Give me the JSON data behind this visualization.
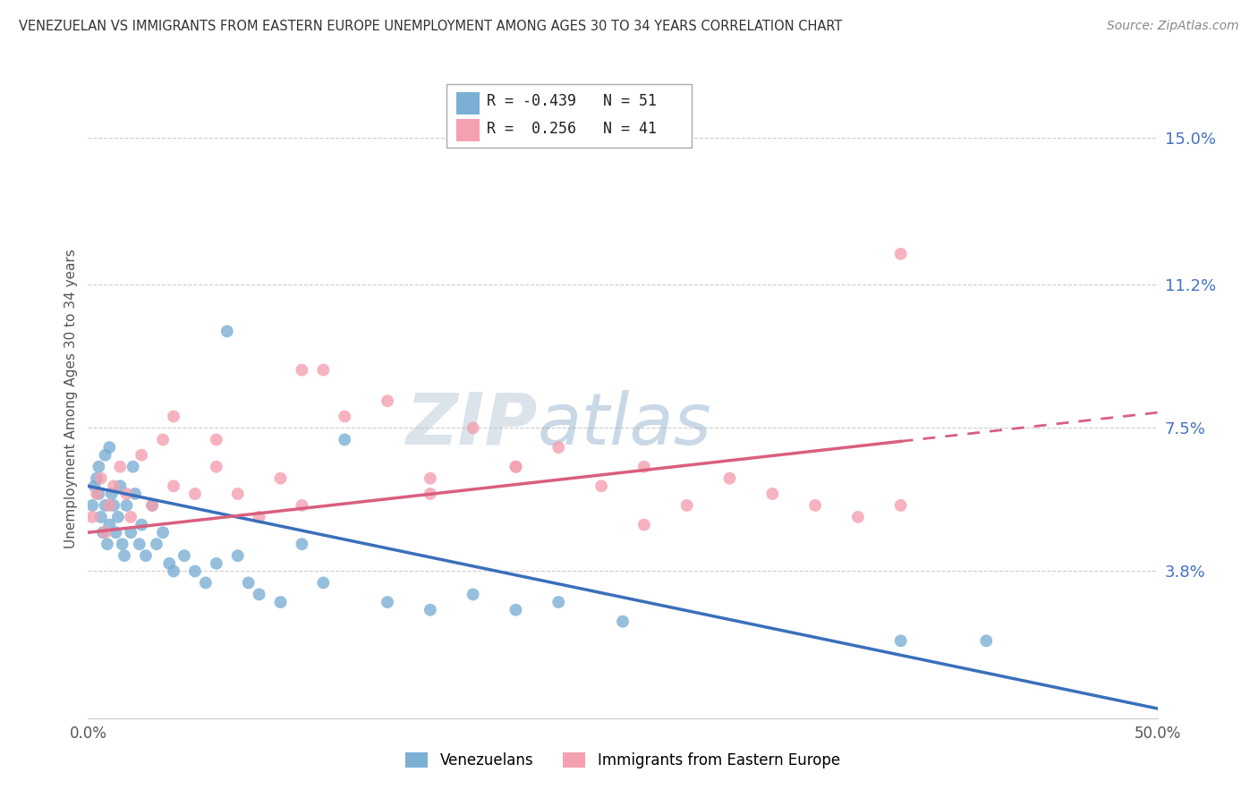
{
  "title": "VENEZUELAN VS IMMIGRANTS FROM EASTERN EUROPE UNEMPLOYMENT AMONG AGES 30 TO 34 YEARS CORRELATION CHART",
  "source": "Source: ZipAtlas.com",
  "ylabel": "Unemployment Among Ages 30 to 34 years",
  "xmin": 0.0,
  "xmax": 0.5,
  "ymin": 0.0,
  "ymax": 0.165,
  "yticks": [
    0.0,
    0.038,
    0.075,
    0.112,
    0.15
  ],
  "ytick_labels": [
    "",
    "3.8%",
    "7.5%",
    "11.2%",
    "15.0%"
  ],
  "xticks": [
    0.0,
    0.1,
    0.2,
    0.3,
    0.4,
    0.5
  ],
  "xtick_labels": [
    "0.0%",
    "",
    "",
    "",
    "",
    "50.0%"
  ],
  "blue_color": "#7bafd4",
  "pink_color": "#f4a0b0",
  "blue_line_color": "#3a6fba",
  "pink_line_color": "#d95f7f",
  "legend_blue_label": "Venezuelans",
  "legend_pink_label": "Immigrants from Eastern Europe",
  "R_blue": "-0.439",
  "N_blue": "51",
  "R_pink": "0.256",
  "N_pink": "41",
  "watermark_zip": "ZIP",
  "watermark_atlas": "atlas",
  "blue_intercept": 0.06,
  "blue_slope": -0.115,
  "pink_intercept": 0.048,
  "pink_slope": 0.062,
  "venezuelan_x": [
    0.002,
    0.003,
    0.004,
    0.005,
    0.005,
    0.006,
    0.007,
    0.008,
    0.008,
    0.009,
    0.01,
    0.01,
    0.011,
    0.012,
    0.013,
    0.014,
    0.015,
    0.016,
    0.017,
    0.018,
    0.02,
    0.021,
    0.022,
    0.024,
    0.025,
    0.027,
    0.03,
    0.032,
    0.035,
    0.038,
    0.04,
    0.045,
    0.05,
    0.055,
    0.06,
    0.065,
    0.07,
    0.075,
    0.08,
    0.09,
    0.1,
    0.11,
    0.12,
    0.14,
    0.16,
    0.18,
    0.2,
    0.22,
    0.25,
    0.38,
    0.42
  ],
  "venezuelan_y": [
    0.055,
    0.06,
    0.062,
    0.058,
    0.065,
    0.052,
    0.048,
    0.068,
    0.055,
    0.045,
    0.07,
    0.05,
    0.058,
    0.055,
    0.048,
    0.052,
    0.06,
    0.045,
    0.042,
    0.055,
    0.048,
    0.065,
    0.058,
    0.045,
    0.05,
    0.042,
    0.055,
    0.045,
    0.048,
    0.04,
    0.038,
    0.042,
    0.038,
    0.035,
    0.04,
    0.1,
    0.042,
    0.035,
    0.032,
    0.03,
    0.045,
    0.035,
    0.072,
    0.03,
    0.028,
    0.032,
    0.028,
    0.03,
    0.025,
    0.02,
    0.02
  ],
  "eastern_x": [
    0.002,
    0.004,
    0.006,
    0.008,
    0.01,
    0.012,
    0.015,
    0.018,
    0.02,
    0.025,
    0.03,
    0.035,
    0.04,
    0.05,
    0.06,
    0.07,
    0.08,
    0.09,
    0.1,
    0.11,
    0.12,
    0.14,
    0.16,
    0.18,
    0.2,
    0.22,
    0.24,
    0.26,
    0.28,
    0.3,
    0.32,
    0.34,
    0.36,
    0.38,
    0.04,
    0.06,
    0.1,
    0.16,
    0.2,
    0.26,
    0.38
  ],
  "eastern_y": [
    0.052,
    0.058,
    0.062,
    0.048,
    0.055,
    0.06,
    0.065,
    0.058,
    0.052,
    0.068,
    0.055,
    0.072,
    0.06,
    0.058,
    0.065,
    0.058,
    0.052,
    0.062,
    0.055,
    0.09,
    0.078,
    0.082,
    0.062,
    0.075,
    0.065,
    0.07,
    0.06,
    0.065,
    0.055,
    0.062,
    0.058,
    0.055,
    0.052,
    0.12,
    0.078,
    0.072,
    0.09,
    0.058,
    0.065,
    0.05,
    0.055
  ]
}
